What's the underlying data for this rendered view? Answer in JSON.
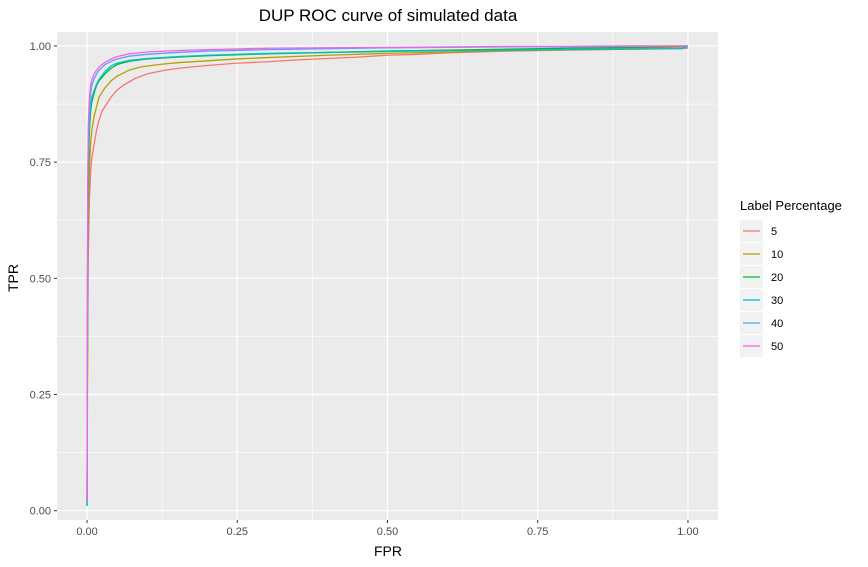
{
  "chart_data": {
    "type": "line",
    "title": "DUP ROC curve of simulated data",
    "xlabel": "FPR",
    "ylabel": "TPR",
    "xlim": [
      -0.05,
      1.05
    ],
    "ylim": [
      -0.02,
      1.03
    ],
    "x_ticks": [
      "0.00",
      "0.25",
      "0.50",
      "0.75",
      "1.00"
    ],
    "y_ticks": [
      "0.00",
      "0.25",
      "0.50",
      "0.75",
      "1.00"
    ],
    "grid": true,
    "legend": {
      "title": "Label Percentage",
      "position": "right"
    },
    "series": [
      {
        "name": "5",
        "color": "#F8766D",
        "x": [
          0,
          0.001,
          0.002,
          0.004,
          0.006,
          0.008,
          0.012,
          0.016,
          0.02,
          0.025,
          0.03,
          0.04,
          0.05,
          0.06,
          0.08,
          0.1,
          0.13,
          0.16,
          0.2,
          0.25,
          0.3,
          0.35,
          0.4,
          0.45,
          0.5,
          0.55,
          0.6,
          0.7,
          0.8,
          0.9,
          1.0
        ],
        "y": [
          0.02,
          0.35,
          0.55,
          0.67,
          0.73,
          0.76,
          0.79,
          0.82,
          0.84,
          0.86,
          0.87,
          0.89,
          0.905,
          0.915,
          0.93,
          0.94,
          0.948,
          0.953,
          0.958,
          0.963,
          0.966,
          0.97,
          0.973,
          0.976,
          0.98,
          0.982,
          0.985,
          0.989,
          0.991,
          0.993,
          0.995
        ]
      },
      {
        "name": "10",
        "color": "#B79F00",
        "x": [
          0,
          0.001,
          0.002,
          0.004,
          0.006,
          0.008,
          0.012,
          0.016,
          0.02,
          0.03,
          0.04,
          0.05,
          0.07,
          0.09,
          0.12,
          0.15,
          0.2,
          0.25,
          0.3,
          0.4,
          0.5,
          0.6,
          0.7,
          0.8,
          0.9,
          1.0
        ],
        "y": [
          0.02,
          0.45,
          0.63,
          0.74,
          0.79,
          0.82,
          0.85,
          0.87,
          0.89,
          0.91,
          0.925,
          0.935,
          0.948,
          0.955,
          0.96,
          0.964,
          0.968,
          0.972,
          0.975,
          0.98,
          0.984,
          0.987,
          0.99,
          0.992,
          0.995,
          0.998
        ]
      },
      {
        "name": "20",
        "color": "#00BA38",
        "x": [
          0,
          0.001,
          0.002,
          0.004,
          0.006,
          0.008,
          0.012,
          0.016,
          0.02,
          0.03,
          0.04,
          0.05,
          0.07,
          0.1,
          0.15,
          0.2,
          0.3,
          0.4,
          0.5,
          0.6,
          0.7,
          0.8,
          0.9,
          1.0
        ],
        "y": [
          0.01,
          0.55,
          0.72,
          0.82,
          0.86,
          0.88,
          0.9,
          0.915,
          0.925,
          0.94,
          0.952,
          0.96,
          0.967,
          0.972,
          0.976,
          0.979,
          0.983,
          0.986,
          0.989,
          0.991,
          0.993,
          0.995,
          0.997,
          0.999
        ]
      },
      {
        "name": "30",
        "color": "#00BFC4",
        "x": [
          0,
          0.001,
          0.002,
          0.004,
          0.006,
          0.008,
          0.012,
          0.016,
          0.02,
          0.03,
          0.04,
          0.05,
          0.07,
          0.1,
          0.15,
          0.2,
          0.3,
          0.4,
          0.5,
          0.6,
          0.7,
          0.8,
          0.9,
          0.99,
          1.0
        ],
        "y": [
          0.01,
          0.6,
          0.76,
          0.84,
          0.87,
          0.89,
          0.905,
          0.918,
          0.928,
          0.945,
          0.957,
          0.963,
          0.969,
          0.973,
          0.977,
          0.98,
          0.984,
          0.986,
          0.988,
          0.99,
          0.991,
          0.992,
          0.993,
          0.994,
          0.999
        ]
      },
      {
        "name": "40",
        "color": "#619CFF",
        "x": [
          0,
          0.001,
          0.002,
          0.004,
          0.006,
          0.008,
          0.012,
          0.016,
          0.02,
          0.03,
          0.04,
          0.05,
          0.07,
          0.1,
          0.15,
          0.2,
          0.3,
          0.4,
          0.5,
          0.6,
          0.7,
          0.8,
          0.9,
          1.0
        ],
        "y": [
          0.02,
          0.65,
          0.8,
          0.87,
          0.9,
          0.915,
          0.93,
          0.94,
          0.948,
          0.96,
          0.967,
          0.972,
          0.978,
          0.982,
          0.986,
          0.989,
          0.992,
          0.994,
          0.996,
          0.997,
          0.998,
          0.998,
          0.999,
          1.0
        ]
      },
      {
        "name": "50",
        "color": "#F564E3",
        "x": [
          0,
          0.001,
          0.002,
          0.004,
          0.006,
          0.008,
          0.012,
          0.016,
          0.02,
          0.03,
          0.04,
          0.05,
          0.07,
          0.1,
          0.15,
          0.2,
          0.3,
          0.4,
          0.5,
          0.6,
          0.7,
          0.8,
          0.9,
          1.0
        ],
        "y": [
          0.02,
          0.7,
          0.83,
          0.89,
          0.915,
          0.928,
          0.94,
          0.948,
          0.955,
          0.965,
          0.972,
          0.977,
          0.983,
          0.987,
          0.99,
          0.992,
          0.995,
          0.996,
          0.997,
          0.998,
          0.999,
          0.999,
          1.0,
          1.0
        ]
      }
    ]
  }
}
